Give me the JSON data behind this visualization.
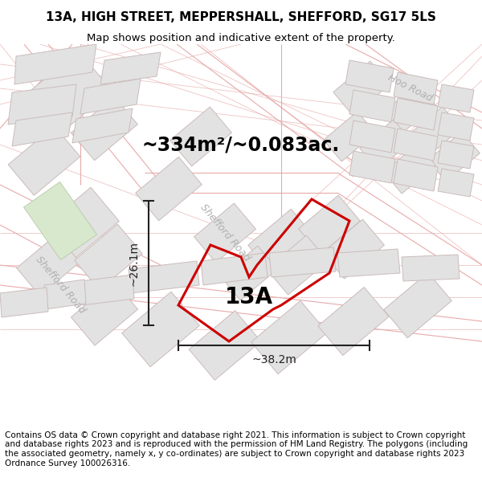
{
  "title": "13A, HIGH STREET, MEPPERSHALL, SHEFFORD, SG17 5LS",
  "subtitle": "Map shows position and indicative extent of the property.",
  "area_label": "~334m²/~0.083ac.",
  "property_label": "13A",
  "dim_height": "~26.1m",
  "dim_width": "~38.2m",
  "footer": "Contains OS data © Crown copyright and database right 2021. This information is subject to Crown copyright and database rights 2023 and is reproduced with the permission of HM Land Registry. The polygons (including the associated geometry, namely x, y co-ordinates) are subject to Crown copyright and database rights 2023 Ordnance Survey 100026316.",
  "bg_color": "#f7f7f7",
  "property_outline_color": "#cc0000",
  "road_line_color": "#e8aaaa",
  "road_line_color2": "#d48888",
  "block_fill": "#e2e2e2",
  "block_edge": "#ccbbbb",
  "dim_color": "#222222",
  "road_label_color": "#b0b0b0",
  "title_fontsize": 11,
  "subtitle_fontsize": 9.5,
  "footer_fontsize": 7.5,
  "area_fontsize": 17,
  "prop_label_fontsize": 20,
  "dim_fontsize": 10,
  "road_label_fontsize": 9,
  "shefford_road_label": "Shefford Road",
  "hoo_road_label": "Hoo Road",
  "shefford_rd_label2": "Shefford Road"
}
